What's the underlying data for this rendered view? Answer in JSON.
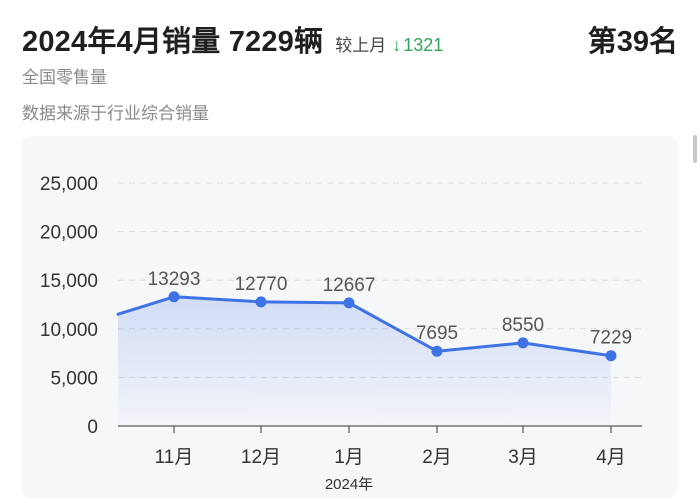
{
  "header": {
    "title": "2024年4月销量 7229辆",
    "compare_label": "较上月",
    "compare_arrow": "↓",
    "compare_value": "1321",
    "rank": "第39名",
    "subtitle": "全国零售量",
    "source": "数据来源于行业综合销量"
  },
  "colors": {
    "line": "#3f73e5",
    "label": "#555555",
    "axis": "#333333",
    "down": "#2fa55a"
  },
  "chart_data": {
    "type": "area",
    "categories": [
      "11月",
      "12月",
      "1月",
      "2月",
      "3月",
      "4月"
    ],
    "values": [
      13293,
      12770,
      12667,
      7695,
      8550,
      7229
    ],
    "data_labels": [
      "13293",
      "12770",
      "12667",
      "7695",
      "8550",
      "7229"
    ],
    "left_partial_value": 11500,
    "y_ticks": [
      "0",
      "5,000",
      "10,000",
      "15,000",
      "20,000",
      "25,000"
    ],
    "y_tick_values": [
      0,
      5000,
      10000,
      15000,
      20000,
      25000
    ],
    "ylim": [
      0,
      25000
    ],
    "x_group_label": "2024年",
    "grid": true,
    "legend": "none"
  }
}
